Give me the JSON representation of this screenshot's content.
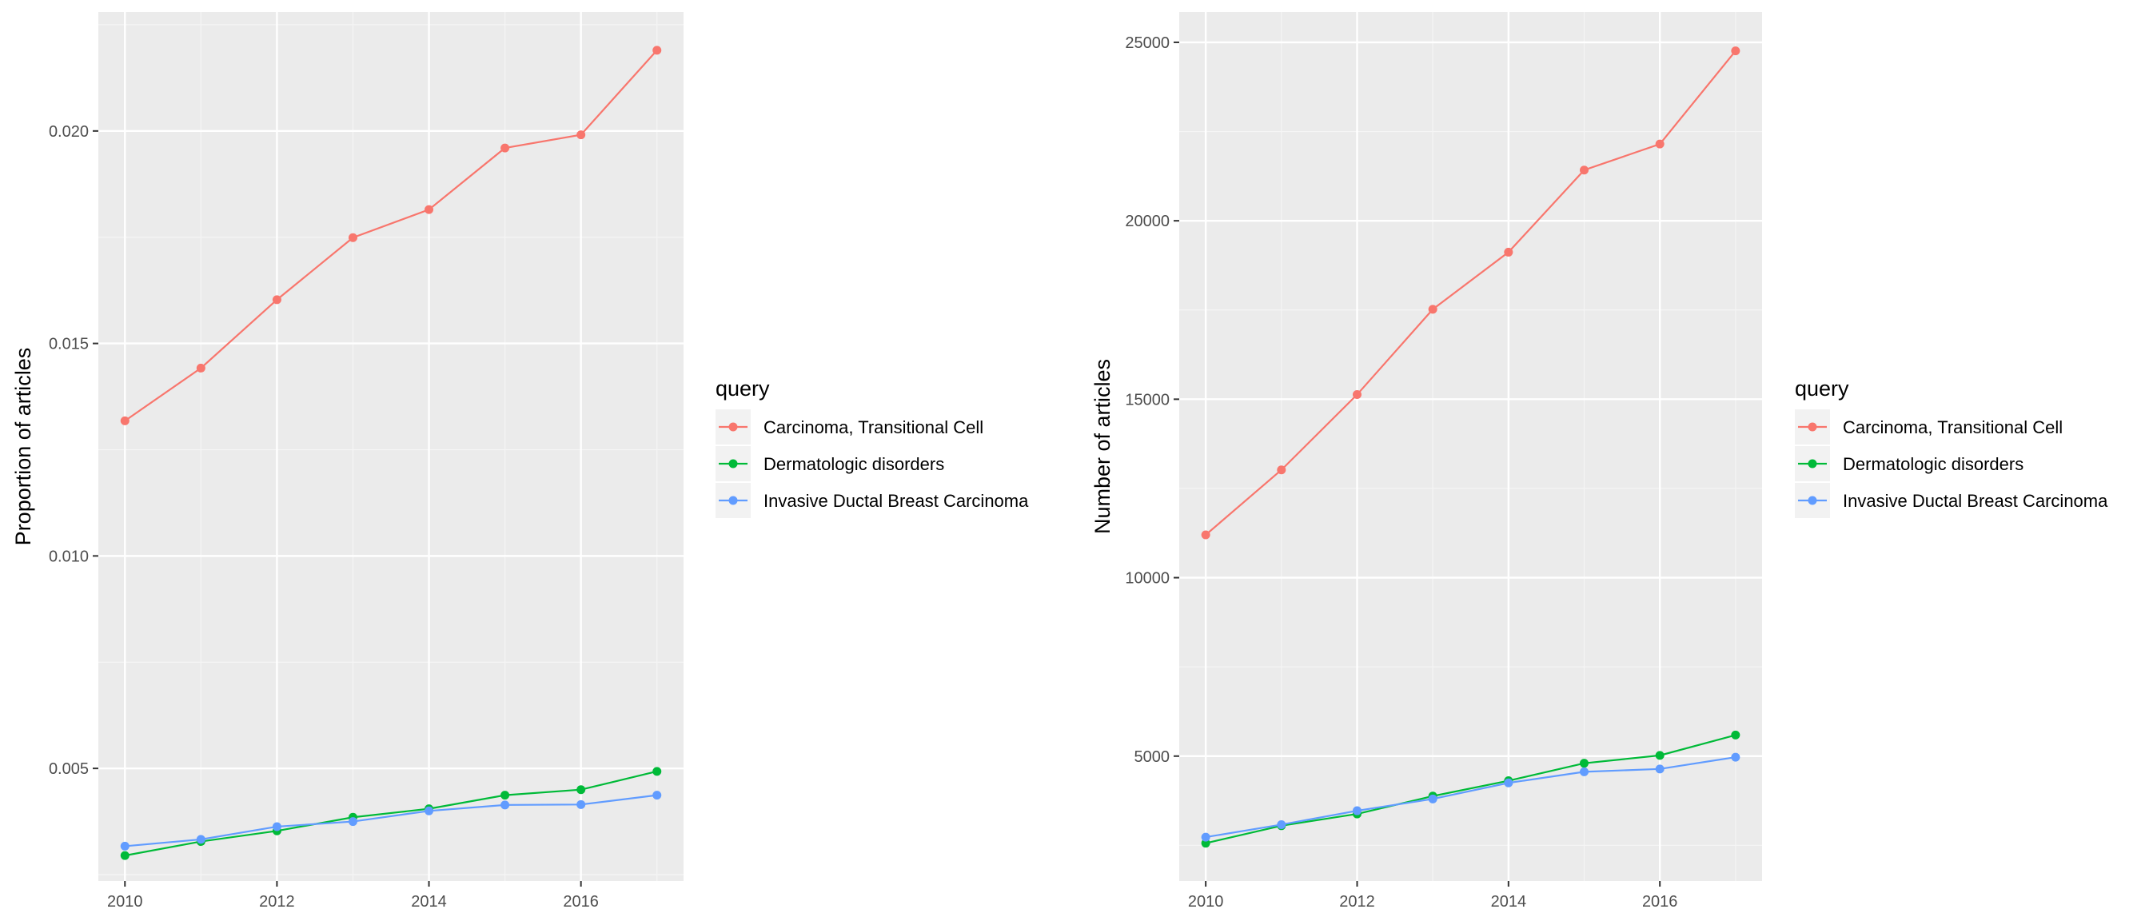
{
  "chart_data": [
    {
      "type": "line",
      "ylabel": "Proportion of articles",
      "xlabel": "",
      "x": [
        2010,
        2011,
        2012,
        2013,
        2014,
        2015,
        2016,
        2017
      ],
      "xlim": [
        2009.65,
        2017.35
      ],
      "ylim": [
        0.00235,
        0.0228
      ],
      "xticks": [
        2010,
        2012,
        2014,
        2016
      ],
      "xtick_labels": [
        "2010",
        "2012",
        "2014",
        "2016"
      ],
      "yticks": [
        0.005,
        0.01,
        0.015,
        0.02
      ],
      "ytick_labels": [
        "0.005",
        "0.010",
        "0.015",
        "0.020"
      ],
      "grid": true,
      "legend_title": "query",
      "legend_position": "right",
      "series": [
        {
          "name": "Carcinoma, Transitional Cell",
          "color": "#F8766D",
          "values": [
            0.01318,
            0.01442,
            0.01603,
            0.01749,
            0.01815,
            0.0196,
            0.01991,
            0.0219
          ]
        },
        {
          "name": "Dermatologic disorders",
          "color": "#00BA38",
          "values": [
            0.00295,
            0.00328,
            0.00353,
            0.00385,
            0.00405,
            0.00437,
            0.0045,
            0.00493
          ]
        },
        {
          "name": "Invasive Ductal Breast Carcinoma",
          "color": "#619CFF",
          "values": [
            0.00317,
            0.00333,
            0.00363,
            0.00375,
            0.004,
            0.00414,
            0.00415,
            0.00437
          ]
        }
      ]
    },
    {
      "type": "line",
      "ylabel": "Number of articles",
      "xlabel": "",
      "x": [
        2010,
        2011,
        2012,
        2013,
        2014,
        2015,
        2016,
        2017
      ],
      "xlim": [
        2009.65,
        2017.35
      ],
      "ylim": [
        1500,
        25850
      ],
      "xticks": [
        2010,
        2012,
        2014,
        2016
      ],
      "xtick_labels": [
        "2010",
        "2012",
        "2014",
        "2016"
      ],
      "yticks": [
        5000,
        10000,
        15000,
        20000,
        25000
      ],
      "ytick_labels": [
        "5000",
        "10000",
        "15000",
        "20000",
        "25000"
      ],
      "grid": true,
      "legend_title": "query",
      "legend_position": "right",
      "series": [
        {
          "name": "Carcinoma, Transitional Cell",
          "color": "#F8766D",
          "values": [
            11200,
            13020,
            15130,
            17520,
            19120,
            21420,
            22150,
            24760
          ]
        },
        {
          "name": "Dermatologic disorders",
          "color": "#00BA38",
          "values": [
            2560,
            3050,
            3380,
            3880,
            4310,
            4800,
            5020,
            5590
          ]
        },
        {
          "name": "Invasive Ductal Breast Carcinoma",
          "color": "#619CFF",
          "values": [
            2730,
            3080,
            3470,
            3800,
            4250,
            4560,
            4640,
            4970
          ]
        }
      ]
    }
  ]
}
